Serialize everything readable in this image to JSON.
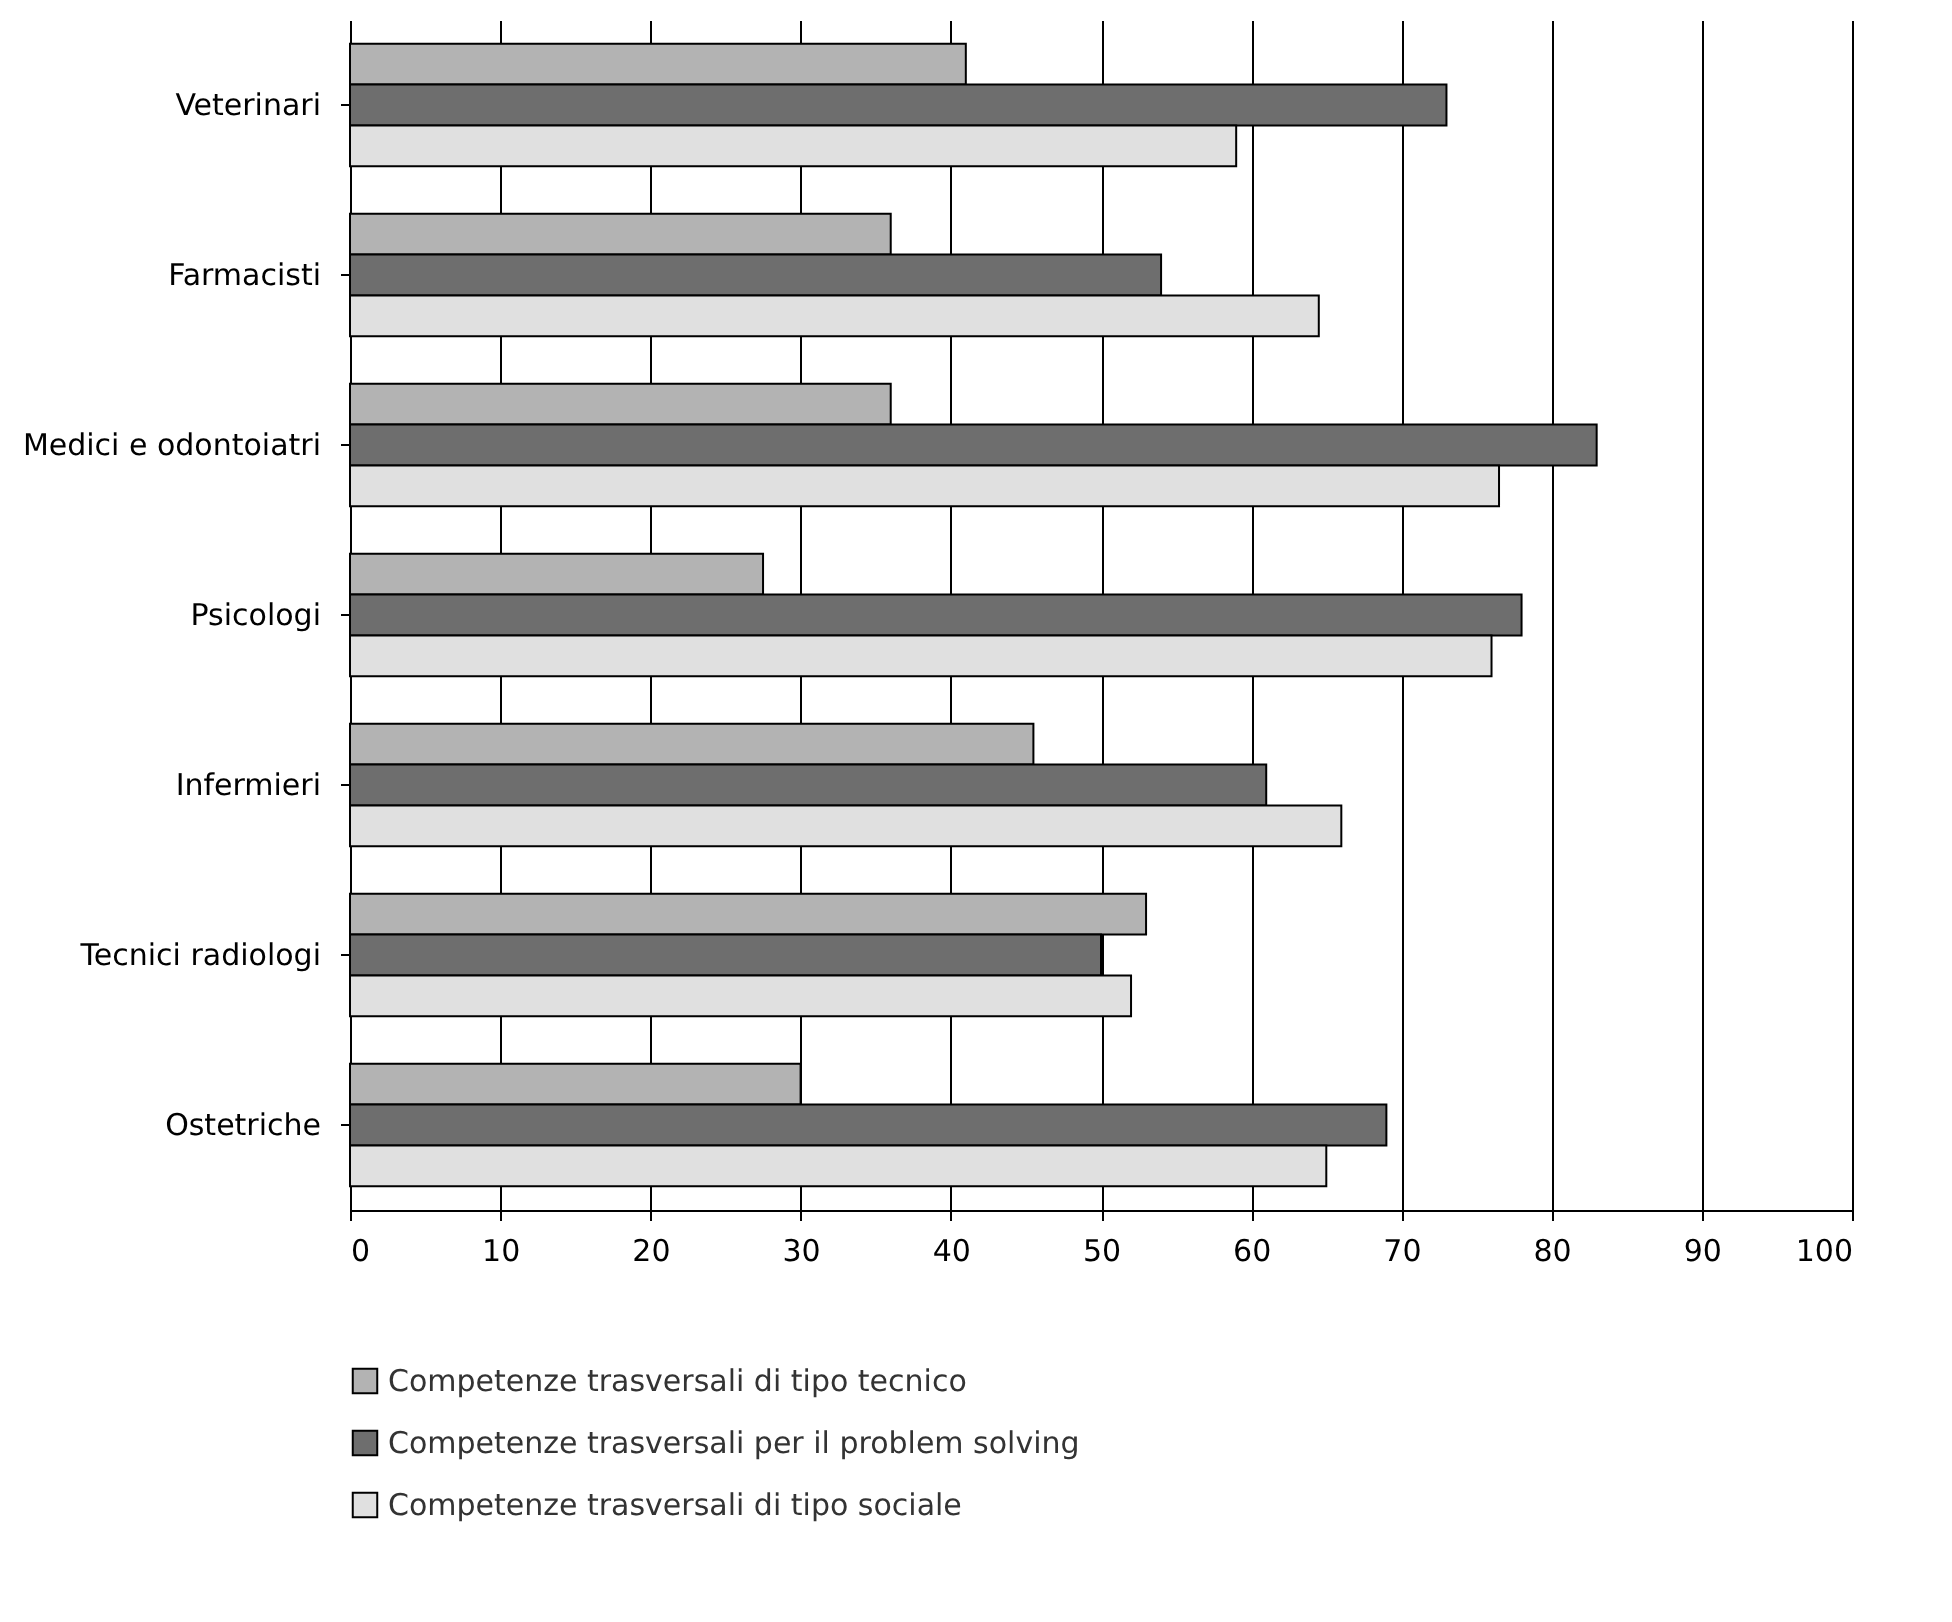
{
  "chart_data": {
    "type": "bar",
    "orientation": "horizontal",
    "categories": [
      "Veterinari",
      "Farmacisti",
      "Medici e odontoiatri",
      "Psicologi",
      "Infermieri",
      "Tecnici radiologi",
      "Ostetriche"
    ],
    "series": [
      {
        "name": "Competenze trasversali di tipo tecnico",
        "color": "#b3b3b3",
        "values": [
          41,
          36,
          36,
          27.5,
          45.5,
          53,
          30
        ]
      },
      {
        "name": "Competenze trasversali per il problem solving",
        "color": "#6e6e6e",
        "values": [
          73,
          54,
          83,
          78,
          61,
          50,
          69
        ]
      },
      {
        "name": "Competenze trasversali di tipo sociale",
        "color": "#e0e0e0",
        "values": [
          59,
          64.5,
          76.5,
          76,
          66,
          52,
          65
        ]
      }
    ],
    "xlim": [
      0,
      100
    ],
    "xticks": [
      0,
      10,
      20,
      30,
      40,
      50,
      60,
      70,
      80,
      90,
      100
    ],
    "grid": "x",
    "legend": "bottom"
  }
}
